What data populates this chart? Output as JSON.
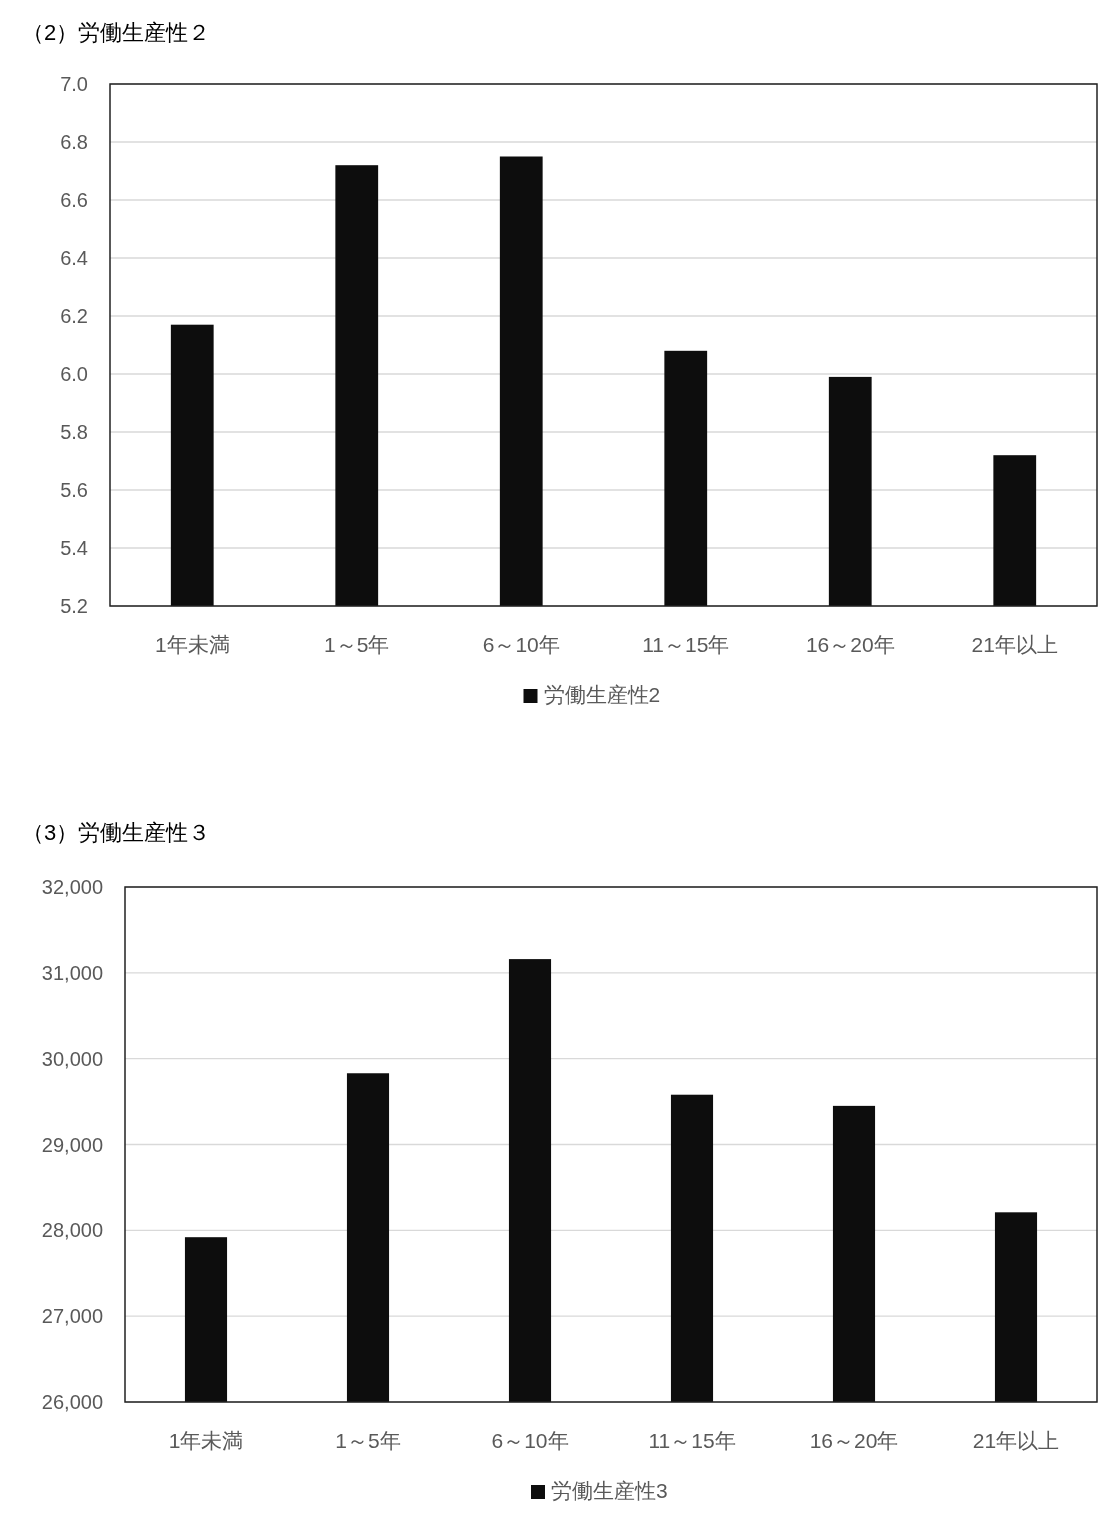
{
  "chart_data": [
    {
      "type": "bar",
      "title": "（2）労働生産性２",
      "categories": [
        "1年未満",
        "1～5年",
        "6～10年",
        "11～15年",
        "16～20年",
        "21年以上"
      ],
      "series": [
        {
          "name": "労働生産性2",
          "color": "#0d0d0d",
          "values": [
            6.17,
            6.72,
            6.75,
            6.08,
            5.99,
            5.72
          ]
        }
      ],
      "ylim": [
        5.2,
        7.0
      ],
      "yticks": [
        {
          "value": 5.2,
          "label": "5.2"
        },
        {
          "value": 5.4,
          "label": "5.4"
        },
        {
          "value": 5.6,
          "label": "5.6"
        },
        {
          "value": 5.8,
          "label": "5.8"
        },
        {
          "value": 6.0,
          "label": "6.0"
        },
        {
          "value": 6.2,
          "label": "6.2"
        },
        {
          "value": 6.4,
          "label": "6.4"
        },
        {
          "value": 6.6,
          "label": "6.6"
        },
        {
          "value": 6.8,
          "label": "6.8"
        },
        {
          "value": 7.0,
          "label": "7.0"
        }
      ],
      "grid": "y",
      "legend": "bottom"
    },
    {
      "type": "bar",
      "title": "（3）労働生産性３",
      "categories": [
        "1年未満",
        "1～5年",
        "6～10年",
        "11～15年",
        "16～20年",
        "21年以上"
      ],
      "series": [
        {
          "name": "労働生産性3",
          "color": "#0d0d0d",
          "values": [
            27920,
            29830,
            31160,
            29580,
            29450,
            28210
          ]
        }
      ],
      "ylim": [
        26000,
        32000
      ],
      "yticks": [
        {
          "value": 26000,
          "label": "26,000"
        },
        {
          "value": 27000,
          "label": "27,000"
        },
        {
          "value": 28000,
          "label": "28,000"
        },
        {
          "value": 29000,
          "label": "29,000"
        },
        {
          "value": 30000,
          "label": "30,000"
        },
        {
          "value": 31000,
          "label": "31,000"
        },
        {
          "value": 32000,
          "label": "32,000"
        }
      ],
      "grid": "y",
      "legend": "bottom"
    }
  ]
}
